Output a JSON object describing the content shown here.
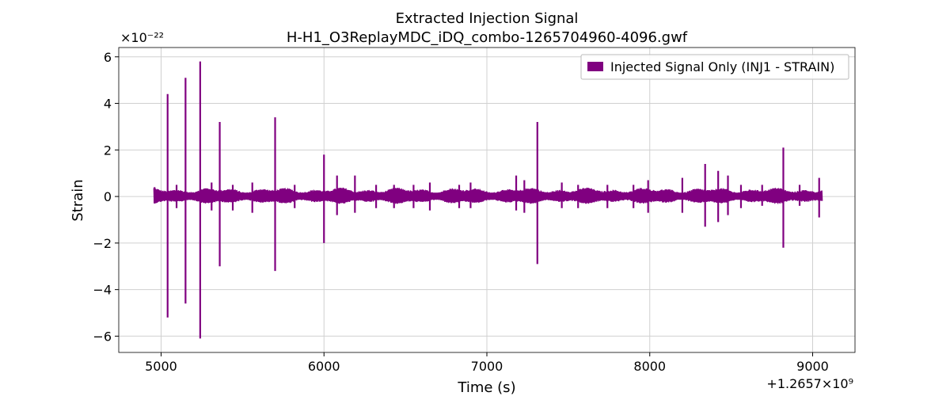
{
  "chart_data": {
    "type": "line",
    "title": "Extracted Injection Signal",
    "subtitle": "H-H1_O3ReplayMDC_iDQ_combo-1265704960-4096.gwf",
    "xlabel": "Time (s)",
    "ylabel": "Strain",
    "x_offset_label": "+1.2657×10⁹",
    "y_multiplier_label": "×10⁻²²",
    "xlim": [
      4740,
      9260
    ],
    "ylim": [
      -6.7,
      6.4
    ],
    "x_ticks": [
      5000,
      6000,
      7000,
      8000,
      9000
    ],
    "x_tick_labels": [
      "5000",
      "6000",
      "7000",
      "8000",
      "9000"
    ],
    "y_ticks": [
      -6,
      -4,
      -2,
      0,
      2,
      4,
      6
    ],
    "y_tick_labels": [
      "−6",
      "−4",
      "−2",
      "0",
      "2",
      "4",
      "6"
    ],
    "grid": true,
    "legend_position": "top-right",
    "series": [
      {
        "name": "Injected Signal Only (INJ1 - STRAIN)",
        "color": "#800080",
        "x_range": [
          4955,
          9060
        ],
        "baseline_band": [
          -0.25,
          0.3
        ],
        "spikes": [
          {
            "x": 4960,
            "ymax": 0.4,
            "ymin": -0.3
          },
          {
            "x": 5040,
            "ymax": 4.4,
            "ymin": -5.2
          },
          {
            "x": 5095,
            "ymax": 0.5,
            "ymin": -0.5
          },
          {
            "x": 5150,
            "ymax": 5.1,
            "ymin": -4.6
          },
          {
            "x": 5240,
            "ymax": 5.8,
            "ymin": -6.1
          },
          {
            "x": 5310,
            "ymax": 0.6,
            "ymin": -0.6
          },
          {
            "x": 5360,
            "ymax": 3.2,
            "ymin": -3.0
          },
          {
            "x": 5440,
            "ymax": 0.5,
            "ymin": -0.6
          },
          {
            "x": 5560,
            "ymax": 0.6,
            "ymin": -0.7
          },
          {
            "x": 5700,
            "ymax": 3.4,
            "ymin": -3.2
          },
          {
            "x": 5820,
            "ymax": 0.5,
            "ymin": -0.5
          },
          {
            "x": 6000,
            "ymax": 1.8,
            "ymin": -2.0
          },
          {
            "x": 6080,
            "ymax": 0.9,
            "ymin": -0.8
          },
          {
            "x": 6190,
            "ymax": 0.9,
            "ymin": -0.7
          },
          {
            "x": 6320,
            "ymax": 0.5,
            "ymin": -0.5
          },
          {
            "x": 6430,
            "ymax": 0.5,
            "ymin": -0.5
          },
          {
            "x": 6550,
            "ymax": 0.5,
            "ymin": -0.5
          },
          {
            "x": 6650,
            "ymax": 0.6,
            "ymin": -0.6
          },
          {
            "x": 6830,
            "ymax": 0.5,
            "ymin": -0.5
          },
          {
            "x": 6900,
            "ymax": 0.6,
            "ymin": -0.5
          },
          {
            "x": 7180,
            "ymax": 0.9,
            "ymin": -0.6
          },
          {
            "x": 7230,
            "ymax": 0.7,
            "ymin": -0.7
          },
          {
            "x": 7310,
            "ymax": 3.2,
            "ymin": -2.9
          },
          {
            "x": 7460,
            "ymax": 0.6,
            "ymin": -0.5
          },
          {
            "x": 7560,
            "ymax": 0.5,
            "ymin": -0.5
          },
          {
            "x": 7740,
            "ymax": 0.5,
            "ymin": -0.5
          },
          {
            "x": 7900,
            "ymax": 0.5,
            "ymin": -0.5
          },
          {
            "x": 7990,
            "ymax": 0.7,
            "ymin": -0.7
          },
          {
            "x": 8200,
            "ymax": 0.8,
            "ymin": -0.7
          },
          {
            "x": 8340,
            "ymax": 1.4,
            "ymin": -1.3
          },
          {
            "x": 8420,
            "ymax": 1.1,
            "ymin": -1.1
          },
          {
            "x": 8480,
            "ymax": 0.9,
            "ymin": -0.8
          },
          {
            "x": 8560,
            "ymax": 0.5,
            "ymin": -0.5
          },
          {
            "x": 8690,
            "ymax": 0.5,
            "ymin": -0.4
          },
          {
            "x": 8820,
            "ymax": 2.1,
            "ymin": -2.2
          },
          {
            "x": 8920,
            "ymax": 0.5,
            "ymin": -0.4
          },
          {
            "x": 9040,
            "ymax": 0.8,
            "ymin": -0.9
          }
        ]
      }
    ]
  }
}
